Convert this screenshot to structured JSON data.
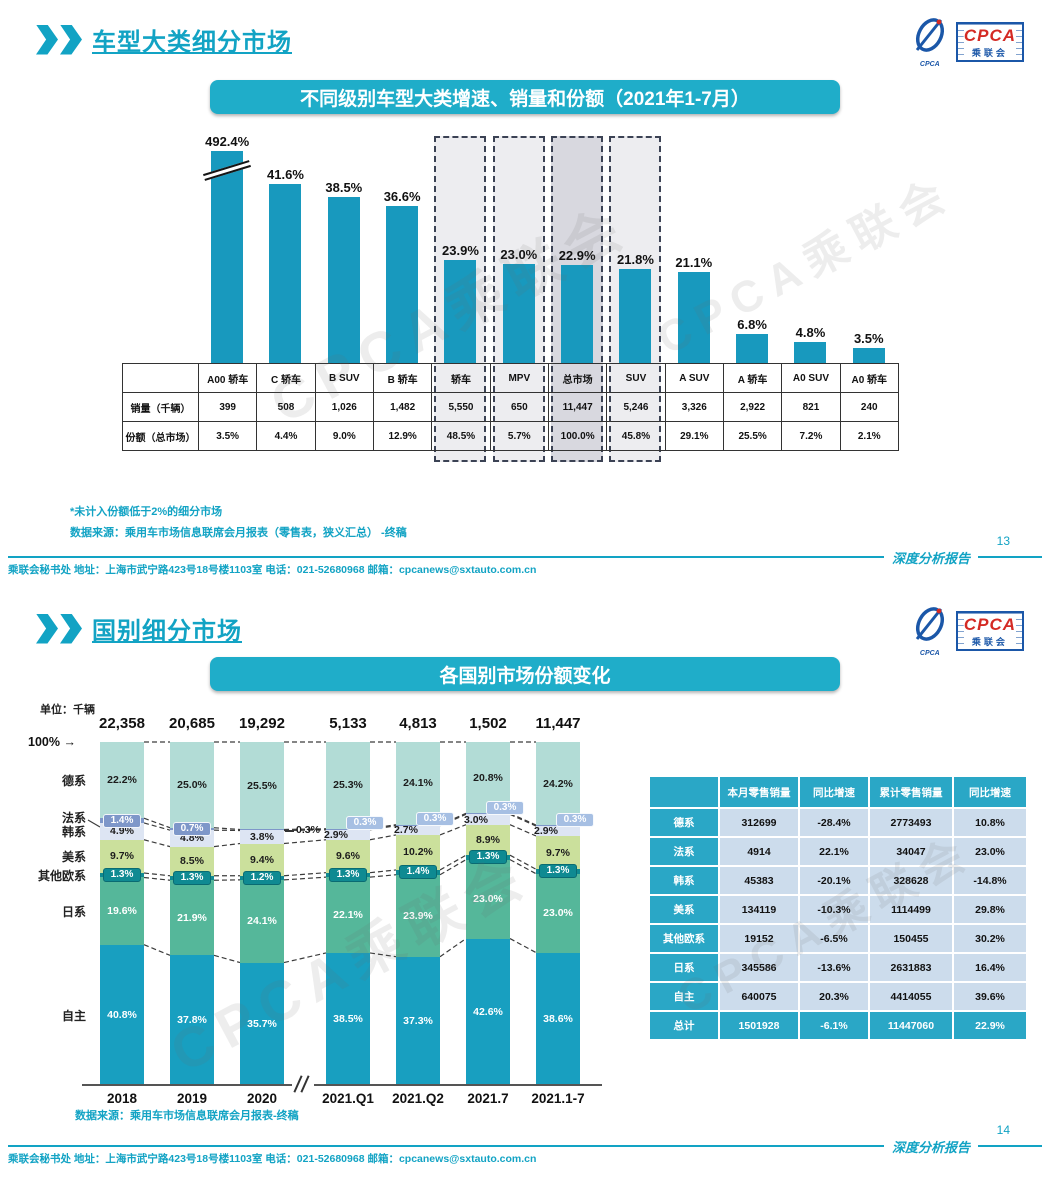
{
  "logo": {
    "cpca": "CPCA",
    "sub": "乘联会",
    "small": "CPCA"
  },
  "watermark": "CPCA乘联会",
  "footer": {
    "org_line": "乘联会秘书处   地址：上海市武宁路423号18号楼1103室   电话：021-52680968   邮箱：cpcanews@sxtauto.com.cn",
    "report_label": "深度分析报告"
  },
  "slide1": {
    "page_number": "13",
    "title": "车型大类细分市场",
    "banner": "不同级别车型大类增速、销量和份额（2021年1-7月）",
    "footnote_star": "*未计入份额低于2%的细分市场",
    "footnote_source": "数据来源：乘用车市场信息联席会月报表（零售表，狭义汇总）  -终稿",
    "table_row_labels": {
      "sales": "销量（千辆）",
      "share": "份额（总市场）"
    }
  },
  "slide2": {
    "page_number": "14",
    "title": "国别细分市场",
    "banner": "各国别市场份额变化",
    "unit_label": "单位：千辆",
    "axis_top_label": "100%",
    "arrow_right": "→",
    "source": "数据来源：乘用车市场信息联席会月报表-终稿",
    "table": {
      "headers": [
        "",
        "本月零售销量",
        "同比增速",
        "累计零售销量",
        "同比增速"
      ],
      "rows": [
        [
          "德系",
          "312699",
          "-28.4%",
          "2773493",
          "10.8%"
        ],
        [
          "法系",
          "4914",
          "22.1%",
          "34047",
          "23.0%"
        ],
        [
          "韩系",
          "45383",
          "-20.1%",
          "328628",
          "-14.8%"
        ],
        [
          "美系",
          "134119",
          "-10.3%",
          "1114499",
          "29.8%"
        ],
        [
          "其他欧系",
          "19152",
          "-6.5%",
          "150455",
          "30.2%"
        ],
        [
          "日系",
          "345586",
          "-13.6%",
          "2631883",
          "16.4%"
        ],
        [
          "自主",
          "640075",
          "20.3%",
          "4414055",
          "39.6%"
        ]
      ],
      "total_row": [
        "总计",
        "1501928",
        "-6.1%",
        "11447060",
        "22.9%"
      ]
    }
  },
  "chart_data": [
    {
      "type": "bar",
      "title": "不同级别车型大类增速、销量和份额（2021年1-7月）",
      "categories": [
        "A00 轿车",
        "C 轿车",
        "B SUV",
        "B 轿车",
        "轿车",
        "MPV",
        "总市场",
        "SUV",
        "A SUV",
        "A 轿车",
        "A0 SUV",
        "A0 轿车"
      ],
      "growth_pct": [
        492.4,
        41.6,
        38.5,
        36.6,
        23.9,
        23.0,
        22.9,
        21.8,
        21.1,
        6.8,
        4.8,
        3.5
      ],
      "sales_thousands": [
        "399",
        "508",
        "1,026",
        "1,482",
        "5,550",
        "650",
        "11,447",
        "5,246",
        "3,326",
        "2,922",
        "821",
        "240"
      ],
      "share_of_total": [
        "3.5%",
        "4.4%",
        "9.0%",
        "12.9%",
        "48.5%",
        "5.7%",
        "100.0%",
        "45.8%",
        "29.1%",
        "25.5%",
        "7.2%",
        "2.1%"
      ],
      "highlighted": [
        "轿车",
        "MPV",
        "总市场",
        "SUV"
      ],
      "emphasis": "总市场",
      "bar_color": "#1899be",
      "axis_break_category": "A00 轿车"
    },
    {
      "type": "stacked-bar",
      "title": "各国别市场份额变化",
      "unit": "千辆",
      "categories": [
        "2018",
        "2019",
        "2020",
        "2021.Q1",
        "2021.Q2",
        "2021.7",
        "2021.1-7"
      ],
      "totals_thousands": [
        "22,358",
        "20,685",
        "19,292",
        "5,133",
        "4,813",
        "1,502",
        "11,447"
      ],
      "series": [
        {
          "name": "德系",
          "color": "#b2dcd6",
          "values": [
            22.2,
            25.0,
            25.5,
            25.3,
            24.1,
            20.8,
            24.2
          ]
        },
        {
          "name": "法系",
          "color": "#7e97c9",
          "values": [
            1.4,
            0.7,
            0.3,
            0.3,
            0.3,
            0.3,
            0.3
          ]
        },
        {
          "name": "韩系",
          "color": "#dde5f3",
          "values": [
            4.9,
            4.8,
            3.8,
            2.9,
            2.7,
            3.0,
            2.9
          ]
        },
        {
          "name": "美系",
          "color": "#cbe09c",
          "values": [
            9.7,
            8.5,
            9.4,
            9.6,
            10.2,
            8.9,
            9.7
          ]
        },
        {
          "name": "其他欧系",
          "color": "#0f8a92",
          "values": [
            1.3,
            1.3,
            1.2,
            1.3,
            1.4,
            1.3,
            1.3
          ]
        },
        {
          "name": "日系",
          "color": "#55b79a",
          "values": [
            19.6,
            21.9,
            24.1,
            22.1,
            23.9,
            23.0,
            23.0
          ]
        },
        {
          "name": "自主",
          "color": "#189fc0",
          "values": [
            40.8,
            37.8,
            35.7,
            38.5,
            37.3,
            42.6,
            38.6
          ]
        }
      ],
      "badge_colors": {
        "early": "#7e97c9",
        "recent": "#a6bfe3",
        "eu_other": "#0f8a92"
      },
      "axis_break_after": "2020",
      "legend_position": "left",
      "ylim": [
        0,
        100
      ]
    }
  ]
}
